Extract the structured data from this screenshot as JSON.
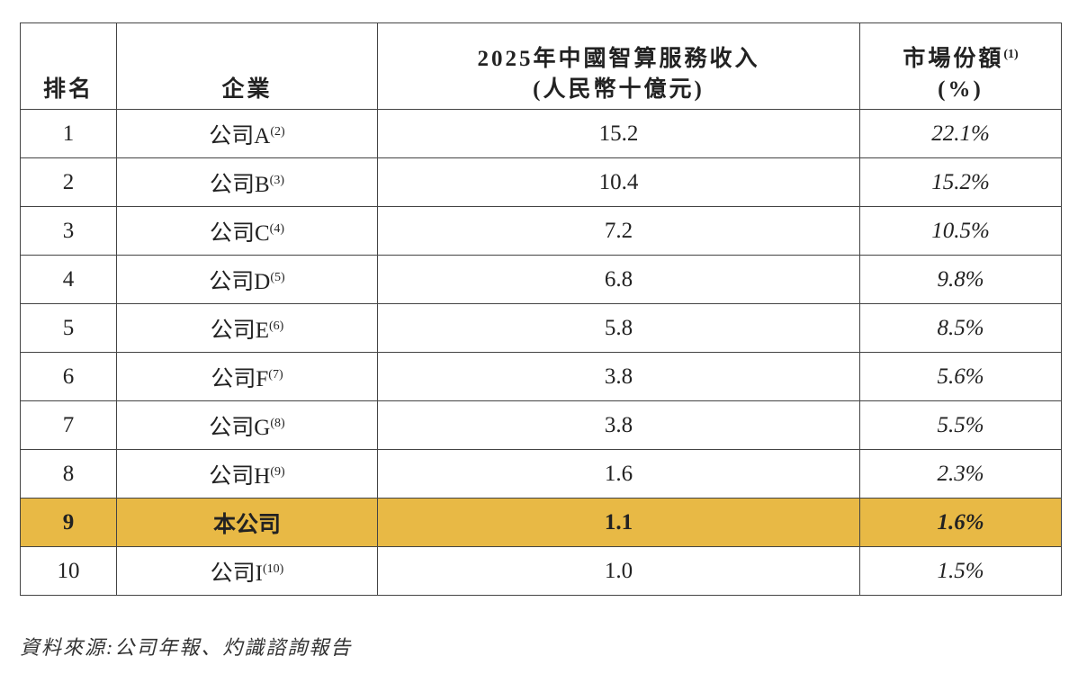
{
  "table": {
    "columns": [
      {
        "line1": "排名"
      },
      {
        "line1": "企業"
      },
      {
        "line1": "2025年中國智算服務收入",
        "line2": "(人民幣十億元)"
      },
      {
        "line1": "市場份額",
        "note": "(1)",
        "line2": "(%)"
      }
    ],
    "rows": [
      {
        "rank": "1",
        "company": "公司A",
        "note": "(2)",
        "revenue": "15.2",
        "share": "22.1%"
      },
      {
        "rank": "2",
        "company": "公司B",
        "note": "(3)",
        "revenue": "10.4",
        "share": "15.2%"
      },
      {
        "rank": "3",
        "company": "公司C",
        "note": "(4)",
        "revenue": "7.2",
        "share": "10.5%"
      },
      {
        "rank": "4",
        "company": "公司D",
        "note": "(5)",
        "revenue": "6.8",
        "share": "9.8%"
      },
      {
        "rank": "5",
        "company": "公司E",
        "note": "(6)",
        "revenue": "5.8",
        "share": "8.5%"
      },
      {
        "rank": "6",
        "company": "公司F",
        "note": "(7)",
        "revenue": "3.8",
        "share": "5.6%"
      },
      {
        "rank": "7",
        "company": "公司G",
        "note": "(8)",
        "revenue": "3.8",
        "share": "5.5%"
      },
      {
        "rank": "8",
        "company": "公司H",
        "note": "(9)",
        "revenue": "1.6",
        "share": "2.3%"
      },
      {
        "rank": "9",
        "company": "本公司",
        "revenue": "1.1",
        "share": "1.6%"
      },
      {
        "rank": "10",
        "company": "公司I",
        "note": "(10)",
        "revenue": "1.0",
        "share": "1.5%"
      }
    ]
  },
  "source": "資料來源:公司年報、灼識諮詢報告"
}
